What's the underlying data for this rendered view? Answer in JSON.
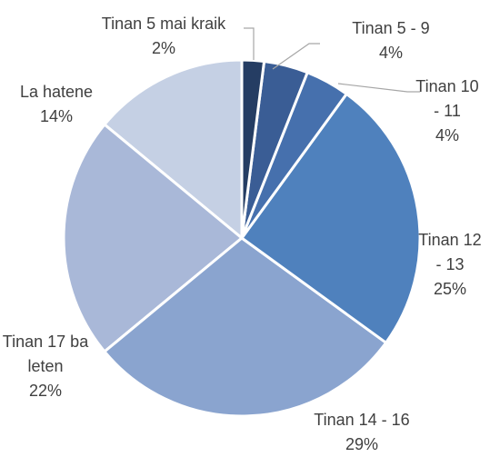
{
  "chart_data": {
    "type": "pie",
    "categories": [
      "Tinan 5 mai kraik",
      "Tinan 5 - 9",
      "Tinan 10 - 11",
      "Tinan 12 - 13",
      "Tinan 14 - 16",
      "Tinan 17 ba leten",
      "La hatene"
    ],
    "values": [
      2,
      4,
      4,
      25,
      29,
      22,
      14
    ],
    "value_labels": [
      "2%",
      "4%",
      "4%",
      "25%",
      "29%",
      "22%",
      "14%"
    ],
    "colors": [
      "#253d63",
      "#3a5d95",
      "#4670ad",
      "#4f81bd",
      "#8aa4cf",
      "#a9b8d8",
      "#c5d0e4"
    ]
  }
}
